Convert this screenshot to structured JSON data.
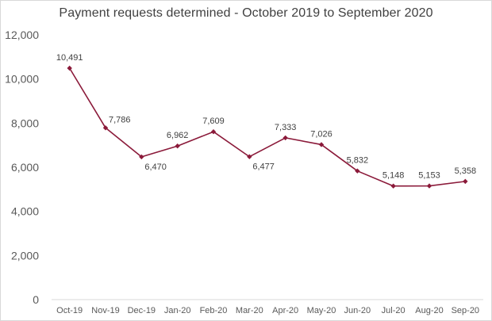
{
  "chart_data": {
    "type": "line",
    "title": "Payment requests determined - October 2019 to September 2020",
    "xlabel": "",
    "ylabel": "",
    "categories": [
      "Oct-19",
      "Nov-19",
      "Dec-19",
      "Jan-20",
      "Feb-20",
      "Mar-20",
      "Apr-20",
      "May-20",
      "Jun-20",
      "Jul-20",
      "Aug-20",
      "Sep-20"
    ],
    "series": [
      {
        "values": [
          10491,
          7786,
          6470,
          6962,
          7609,
          6477,
          7333,
          7026,
          5832,
          5148,
          5153,
          5358
        ],
        "labels": [
          "10,491",
          "7,786",
          "6,470",
          "6,962",
          "7,609",
          "6,477",
          "7,333",
          "7,026",
          "5,832",
          "5,148",
          "5,153",
          "5,358"
        ],
        "color": "#8b1a3a"
      }
    ],
    "ylim": [
      0,
      12000
    ],
    "yticks": [
      0,
      2000,
      4000,
      6000,
      8000,
      10000,
      12000
    ],
    "ytick_labels": [
      "0",
      "2,000",
      "4,000",
      "6,000",
      "8,000",
      "10,000",
      "12,000"
    ],
    "grid": false,
    "legend": "none",
    "marker": "diamond"
  }
}
